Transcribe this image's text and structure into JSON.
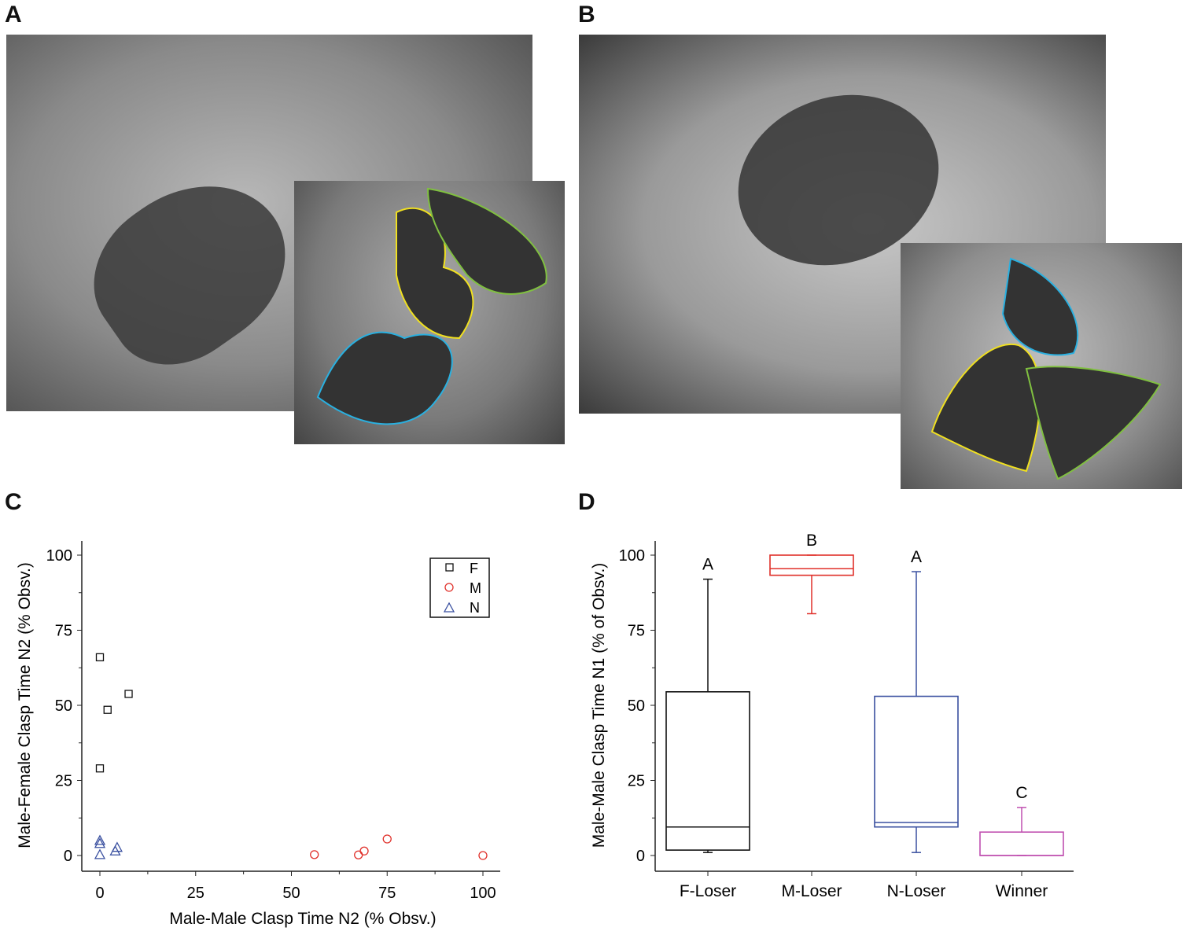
{
  "panels": {
    "a": "A",
    "b": "B",
    "c": "C",
    "d": "D"
  },
  "photos": {
    "a_main": "frogs-in-tank-photo",
    "a_inset": "frogs-outlined-photo",
    "b_main": "frogs-in-tank-photo",
    "b_inset": "frogs-outlined-photo",
    "outline_colors": [
      "#2ab0e0",
      "#f0e020",
      "#80c040"
    ]
  },
  "chart_data": [
    {
      "type": "scatter",
      "xlabel": "Male-Male Clasp Time N2 (% Obsv.)",
      "ylabel": "Male-Female Clasp Time N2 (% Obsv.)",
      "xlim": [
        -5,
        105
      ],
      "ylim": [
        -5,
        105
      ],
      "xticks": [
        "0",
        "25",
        "50",
        "75",
        "100"
      ],
      "yticks": [
        "0",
        "25",
        "50",
        "75",
        "100"
      ],
      "legend_position": "top-right",
      "series": [
        {
          "name": "F",
          "marker": "square",
          "color": "#111111",
          "points": [
            [
              0,
              66
            ],
            [
              2,
              48.5
            ],
            [
              7.5,
              53.8
            ],
            [
              0,
              29
            ]
          ]
        },
        {
          "name": "M",
          "marker": "circle",
          "color": "#e0302a",
          "points": [
            [
              56,
              0.3
            ],
            [
              67.5,
              0.2
            ],
            [
              69,
              1.5
            ],
            [
              75,
              5.5
            ],
            [
              100,
              0
            ]
          ]
        },
        {
          "name": "N",
          "marker": "triangle",
          "color": "#3a50a0",
          "points": [
            [
              0,
              5
            ],
            [
              0,
              4
            ],
            [
              0,
              0.3
            ],
            [
              4,
              1.5
            ],
            [
              4.5,
              2.7
            ]
          ]
        }
      ]
    },
    {
      "type": "box",
      "ylabel": "Male-Male Clasp Time N1 (% of Obsv.)",
      "ylim": [
        -5,
        105
      ],
      "yticks": [
        "0",
        "25",
        "50",
        "75",
        "100"
      ],
      "categories": [
        "F-Loser",
        "M-Loser",
        "N-Loser",
        "Winner"
      ],
      "boxes": [
        {
          "min": 1,
          "q1": 1.8,
          "median": 9.5,
          "q3": 54.5,
          "max": 92,
          "color": "#111111",
          "letter": "A"
        },
        {
          "min": 80.5,
          "q1": 93.3,
          "median": 95.5,
          "q3": 100,
          "max": 100,
          "color": "#e0302a",
          "letter": "B"
        },
        {
          "min": 1,
          "q1": 9.5,
          "median": 11,
          "q3": 53,
          "max": 94.5,
          "color": "#3a50a0",
          "letter": "A"
        },
        {
          "min": 0,
          "q1": 0,
          "median": 0,
          "q3": 7.8,
          "max": 16,
          "color": "#c050b0",
          "letter": "C"
        }
      ]
    }
  ]
}
